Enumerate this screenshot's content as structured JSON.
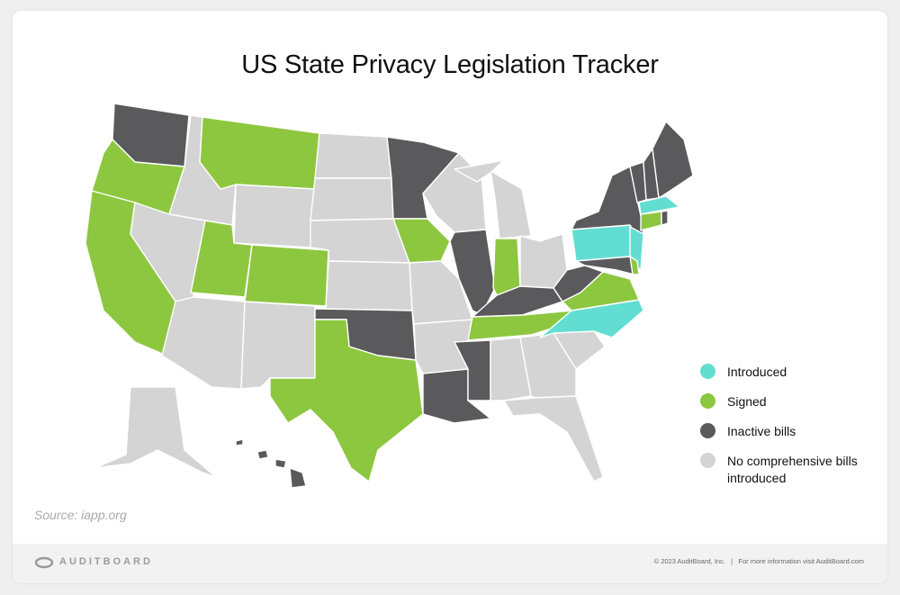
{
  "title": "US State Privacy Legislation Tracker",
  "legend": [
    {
      "label": "Introduced",
      "color": "#62ddd2"
    },
    {
      "label": "Signed",
      "color": "#8dc73f"
    },
    {
      "label": "Inactive bills",
      "color": "#5a5a5d"
    },
    {
      "label": "No comprehensive bills introduced",
      "color": "#d4d4d4"
    }
  ],
  "source": "Source: iapp.org",
  "footer": {
    "logo": "AUDITBOARD",
    "copyright": "© 2023 AuditBoard, Inc.   |   For more information visit AuditBoard.com"
  }
}
